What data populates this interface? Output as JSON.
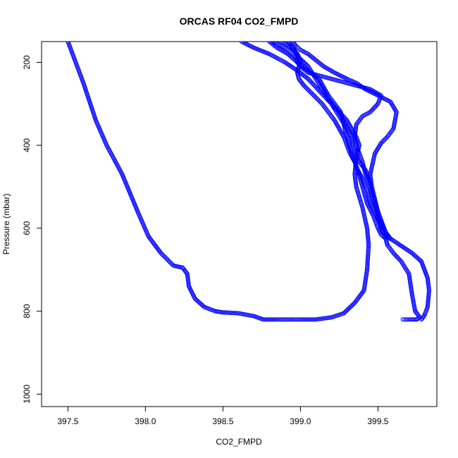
{
  "chart_data": {
    "type": "scatter",
    "title": "ORCAS RF04 CO2_FMPD",
    "xlabel": "CO2_FMPD",
    "ylabel": "Pressure (mbar)",
    "xlim": [
      397.33,
      399.88
    ],
    "ylim": [
      1030,
      150
    ],
    "y_reversed": true,
    "grid": false,
    "legend": "none",
    "marker": "open-circle",
    "color": "#0000ff",
    "xticks": [
      397.5,
      398.0,
      398.5,
      399.0,
      399.5
    ],
    "xtick_labels": [
      "397.5",
      "398.0",
      "398.5",
      "399.0",
      "399.5"
    ],
    "yticks": [
      200,
      400,
      600,
      800,
      1000
    ],
    "ytick_labels": [
      "200",
      "400",
      "600",
      "800",
      "1000"
    ],
    "series": [
      {
        "x": [
          397.5,
          397.6,
          397.68,
          397.75,
          397.85,
          397.95,
          398.02,
          398.1,
          398.18,
          398.24,
          398.27,
          398.28,
          398.32,
          398.38,
          398.45,
          398.5,
          398.6,
          398.7,
          398.76,
          398.85,
          399.0,
          399.1,
          399.2,
          399.28,
          399.35,
          399.41,
          399.43,
          399.44,
          399.43,
          399.4,
          399.36,
          399.35,
          399.36,
          399.38,
          399.36,
          399.33,
          399.3,
          399.25,
          399.2,
          399.15,
          399.1,
          399.05,
          398.98,
          398.9,
          398.8,
          398.7,
          398.62
        ],
        "y": [
          150,
          250,
          340,
          400,
          470,
          560,
          620,
          660,
          690,
          695,
          710,
          740,
          770,
          790,
          800,
          803,
          805,
          812,
          820,
          820,
          820,
          820,
          815,
          805,
          780,
          750,
          700,
          640,
          600,
          550,
          500,
          470,
          430,
          400,
          380,
          360,
          340,
          320,
          300,
          280,
          260,
          240,
          220,
          200,
          180,
          165,
          150
        ]
      },
      {
        "x": [
          399.66,
          399.7,
          399.75,
          399.77,
          399.74,
          399.72,
          399.7,
          399.65,
          399.6,
          399.56,
          399.55,
          399.52,
          399.5,
          399.47,
          399.43,
          399.4,
          399.37,
          399.33,
          399.3,
          399.28,
          399.26,
          399.22,
          399.18,
          399.15,
          399.12,
          399.05,
          398.98,
          398.92,
          398.85,
          398.8
        ],
        "y": [
          820,
          820,
          820,
          815,
          800,
          760,
          710,
          680,
          660,
          640,
          625,
          615,
          600,
          570,
          540,
          500,
          460,
          420,
          380,
          350,
          320,
          300,
          280,
          260,
          240,
          220,
          200,
          180,
          165,
          150
        ]
      },
      {
        "x": [
          399.78,
          399.8,
          399.82,
          399.83,
          399.82,
          399.78,
          399.72,
          399.64,
          399.58,
          399.55,
          399.53,
          399.5,
          399.48,
          399.46,
          399.44,
          399.42,
          399.38,
          399.35,
          399.33,
          399.3,
          399.25,
          399.2,
          399.15,
          399.1,
          399.05,
          398.98,
          398.95,
          398.92
        ],
        "y": [
          820,
          810,
          790,
          750,
          720,
          680,
          660,
          640,
          625,
          610,
          590,
          560,
          530,
          500,
          480,
          460,
          440,
          420,
          380,
          360,
          330,
          300,
          270,
          240,
          210,
          185,
          165,
          150
        ]
      },
      {
        "x": [
          399.55,
          399.52,
          399.5,
          399.48,
          399.46,
          399.45,
          399.48,
          399.52,
          399.56,
          399.6,
          399.62,
          399.58,
          399.5,
          399.42,
          399.36,
          399.3,
          399.22,
          399.15,
          399.1,
          399.05,
          399.0,
          398.97,
          398.95
        ],
        "y": [
          625,
          600,
          570,
          530,
          500,
          470,
          420,
          395,
          380,
          360,
          320,
          295,
          280,
          265,
          250,
          240,
          225,
          210,
          195,
          180,
          170,
          160,
          150
        ]
      },
      {
        "x": [
          399.57,
          399.55,
          399.53,
          399.52,
          399.5,
          399.47,
          399.45,
          399.42,
          399.4,
          399.38,
          399.36,
          399.35,
          399.36,
          399.4,
          399.45,
          399.5,
          399.52,
          399.45,
          399.35,
          399.25,
          399.15,
          399.05,
          399.0,
          398.98,
          398.98,
          398.95,
          398.92,
          398.88,
          398.82
        ],
        "y": [
          625,
          610,
          595,
          580,
          560,
          530,
          500,
          470,
          440,
          420,
          400,
          380,
          350,
          330,
          320,
          300,
          280,
          265,
          255,
          245,
          235,
          225,
          210,
          200,
          190,
          180,
          170,
          160,
          150
        ]
      },
      {
        "x": [
          399.53,
          399.5,
          399.48,
          399.45,
          399.43,
          399.4,
          399.37,
          399.35,
          399.32,
          399.3,
          399.28,
          399.25,
          399.22,
          399.18,
          399.14,
          399.1,
          399.06,
          399.02,
          398.99,
          398.98,
          398.99,
          399.0,
          398.98,
          398.96,
          398.93,
          398.88
        ],
        "y": [
          600,
          580,
          560,
          540,
          510,
          480,
          460,
          440,
          420,
          400,
          380,
          360,
          340,
          320,
          300,
          285,
          270,
          255,
          240,
          225,
          210,
          195,
          180,
          170,
          160,
          150
        ]
      }
    ]
  }
}
